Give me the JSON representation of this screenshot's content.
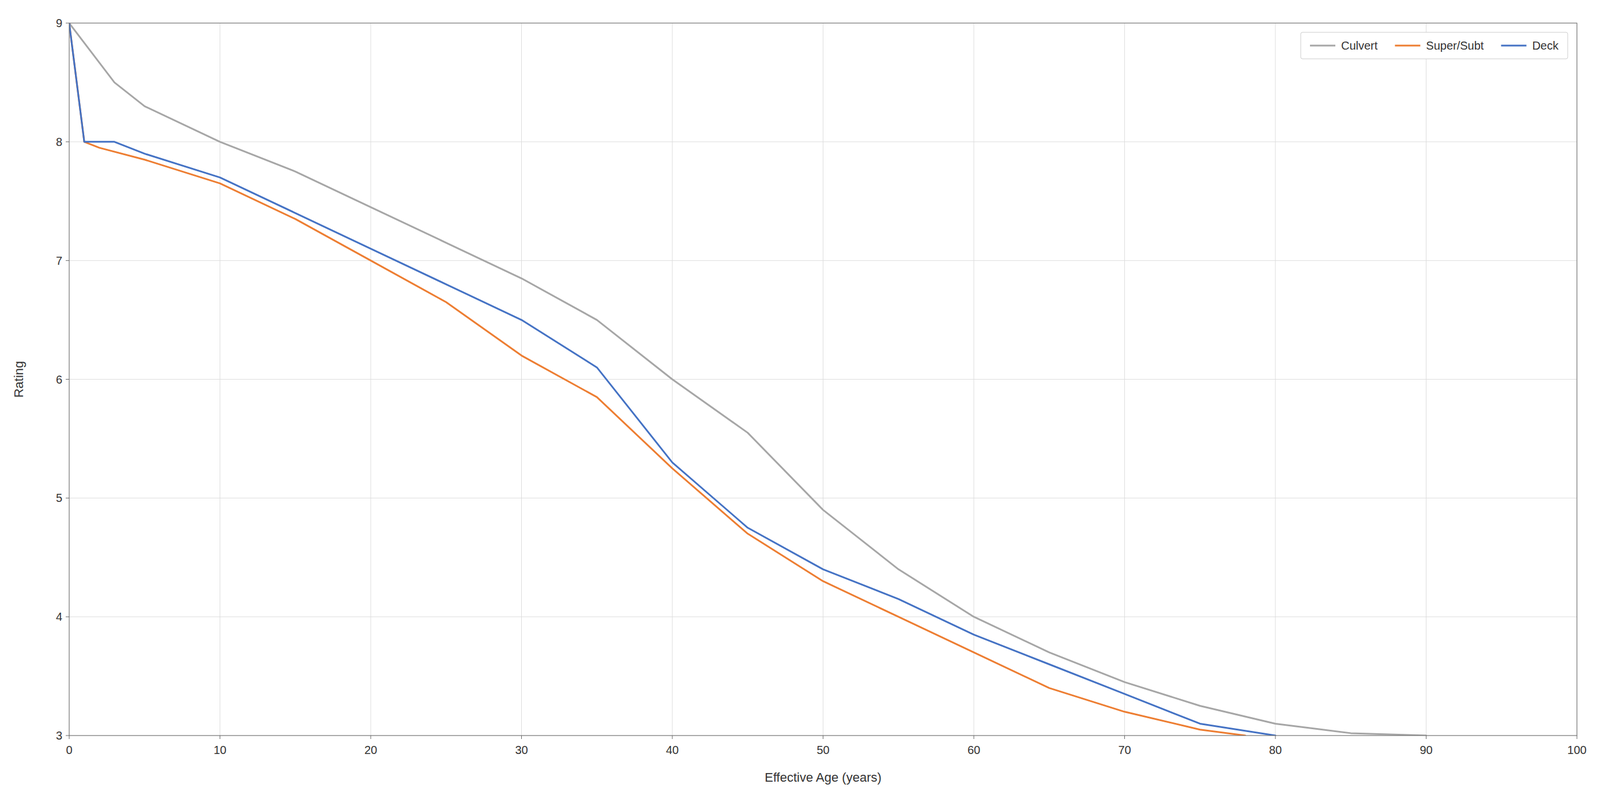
{
  "chart_data": {
    "type": "line",
    "xlabel": "Effective Age (years)",
    "ylabel": "Rating",
    "xlim": [
      0,
      100
    ],
    "ylim": [
      3,
      9
    ],
    "xticks": [
      0,
      10,
      20,
      30,
      40,
      50,
      60,
      70,
      80,
      90,
      100
    ],
    "yticks": [
      3,
      4,
      5,
      6,
      7,
      8,
      9
    ],
    "grid": true,
    "legend": "upper right",
    "series": [
      {
        "name": "Culvert",
        "color": "#A6A6A6",
        "x": [
          0,
          3,
          5,
          10,
          15,
          20,
          25,
          30,
          35,
          40,
          45,
          50,
          55,
          60,
          65,
          70,
          75,
          80,
          85,
          90
        ],
        "values": [
          9,
          8.5,
          8.3,
          8.0,
          7.75,
          7.45,
          7.15,
          6.85,
          6.5,
          6.0,
          5.55,
          4.9,
          4.4,
          4.0,
          3.7,
          3.45,
          3.25,
          3.1,
          3.02,
          3.0
        ]
      },
      {
        "name": "Super/Subt",
        "color": "#ED7D31",
        "x": [
          0,
          1,
          2,
          5,
          10,
          15,
          20,
          25,
          30,
          35,
          40,
          45,
          50,
          55,
          60,
          65,
          70,
          75,
          78
        ],
        "values": [
          9,
          8,
          7.95,
          7.85,
          7.65,
          7.35,
          7.0,
          6.65,
          6.2,
          5.85,
          5.25,
          4.7,
          4.3,
          4.0,
          3.7,
          3.4,
          3.2,
          3.05,
          3.0
        ]
      },
      {
        "name": "Deck",
        "color": "#4472C4",
        "x": [
          0,
          1,
          3,
          5,
          10,
          15,
          20,
          25,
          30,
          35,
          40,
          45,
          50,
          55,
          60,
          65,
          70,
          75,
          80
        ],
        "values": [
          9,
          8,
          8,
          7.9,
          7.7,
          7.4,
          7.1,
          6.8,
          6.5,
          6.1,
          5.3,
          4.75,
          4.4,
          4.15,
          3.85,
          3.6,
          3.35,
          3.1,
          3.0
        ]
      }
    ]
  }
}
